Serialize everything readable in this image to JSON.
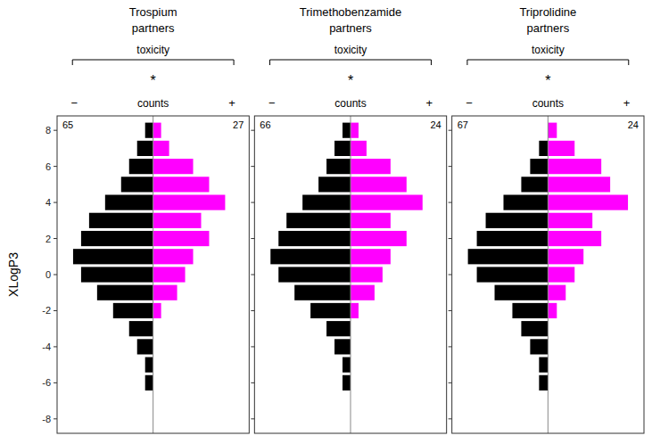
{
  "chart_data": [
    {
      "type": "bar",
      "orientation": "horizontal",
      "title": "Trospium",
      "subtitle": "partners",
      "y_label": "XLogP3",
      "annotations": [
        "toxicity",
        "*",
        "−",
        "counts",
        "+"
      ],
      "n_neg": 65,
      "n_pos": 27,
      "y": [
        -8,
        -7,
        -6,
        -5,
        -4,
        -3,
        -2,
        -1,
        0,
        1,
        2,
        3,
        4,
        5,
        6,
        7,
        8
      ],
      "series": [
        {
          "color": "#000000",
          "values": [
            0,
            0,
            -1,
            -1,
            -2,
            -3,
            -5,
            -7,
            -9,
            -10,
            -9,
            -8,
            -6,
            -4,
            -3,
            -2,
            -1
          ]
        },
        {
          "color": "#FF00FF",
          "values": [
            0,
            0,
            0,
            0,
            0,
            0,
            1,
            3,
            4,
            5,
            7,
            6,
            9,
            7,
            5,
            2,
            1
          ]
        }
      ],
      "xlim": [
        -12,
        12
      ],
      "ylim": [
        -8.8,
        8.8
      ],
      "yticks": [
        -8,
        -6,
        -4,
        -2,
        0,
        2,
        4,
        6,
        8
      ],
      "tick_labels": "y"
    },
    {
      "type": "bar",
      "orientation": "horizontal",
      "title": "Trimethobenzamide",
      "subtitle": "partners",
      "annotations": [
        "toxicity",
        "*",
        "−",
        "counts",
        "+"
      ],
      "n_neg": 66,
      "n_pos": 24,
      "y": [
        -8,
        -7,
        -6,
        -5,
        -4,
        -3,
        -2,
        -1,
        0,
        1,
        2,
        3,
        4,
        5,
        6,
        7,
        8
      ],
      "series": [
        {
          "color": "#000000",
          "values": [
            0,
            0,
            -1,
            -1,
            -2,
            -3,
            -5,
            -7,
            -9,
            -10,
            -9,
            -8,
            -6,
            -4,
            -3,
            -2,
            -1
          ]
        },
        {
          "color": "#FF00FF",
          "values": [
            0,
            0,
            0,
            0,
            0,
            0,
            1,
            3,
            4,
            5,
            7,
            5,
            9,
            7,
            5,
            2,
            1
          ]
        }
      ],
      "xlim": [
        -12,
        12
      ],
      "ylim": [
        -8.8,
        8.8
      ],
      "yticks": [
        -8,
        -6,
        -4,
        -2,
        0,
        2,
        4,
        6,
        8
      ],
      "tick_labels": false
    },
    {
      "type": "bar",
      "orientation": "horizontal",
      "title": "Triprolidine",
      "subtitle": "partners",
      "annotations": [
        "toxicity",
        "*",
        "−",
        "counts",
        "+"
      ],
      "n_neg": 67,
      "n_pos": 24,
      "y": [
        -8,
        -7,
        -6,
        -5,
        -4,
        -3,
        -2,
        -1,
        0,
        1,
        2,
        3,
        4,
        5,
        6,
        7,
        8
      ],
      "series": [
        {
          "color": "#000000",
          "values": [
            0,
            0,
            -1.1111111111111112,
            -1.1111111111111112,
            -2.2222222222222223,
            -3.3333333333333335,
            -4.444444444444445,
            -6.666666666666667,
            -8.88888888888889,
            -10,
            -8.88888888888889,
            -7.777777777777778,
            -5.555555555555555,
            -3.3333333333333335,
            -2.2222222222222223,
            -1.1111111111111112,
            0
          ]
        },
        {
          "color": "#FF00FF",
          "values": [
            0,
            0,
            0,
            0,
            0,
            0,
            1.1111111111111112,
            2.2222222222222223,
            3.3333333333333335,
            4.444444444444445,
            6.666666666666667,
            5.555555555555555,
            10,
            7.777777777777778,
            6.666666666666667,
            3.3333333333333335,
            1.1111111111111112
          ]
        }
      ],
      "xlim": [
        -12,
        12
      ],
      "ylim": [
        -8.8,
        8.8
      ],
      "yticks": [
        -8,
        -6,
        -4,
        -2,
        0,
        2,
        4,
        6,
        8
      ],
      "tick_labels": false
    }
  ]
}
